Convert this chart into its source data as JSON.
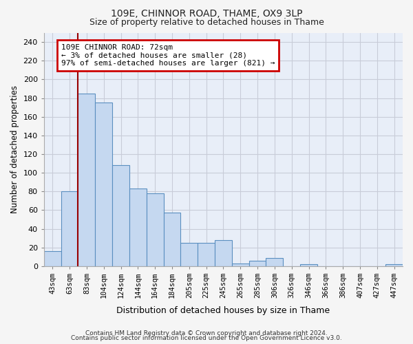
{
  "title1": "109E, CHINNOR ROAD, THAME, OX9 3LP",
  "title2": "Size of property relative to detached houses in Thame",
  "xlabel": "Distribution of detached houses by size in Thame",
  "ylabel": "Number of detached properties",
  "categories": [
    "43sqm",
    "63sqm",
    "83sqm",
    "104sqm",
    "124sqm",
    "144sqm",
    "164sqm",
    "184sqm",
    "205sqm",
    "225sqm",
    "245sqm",
    "265sqm",
    "285sqm",
    "306sqm",
    "326sqm",
    "346sqm",
    "366sqm",
    "386sqm",
    "407sqm",
    "427sqm",
    "447sqm"
  ],
  "values": [
    16,
    80,
    185,
    175,
    108,
    83,
    78,
    57,
    25,
    25,
    28,
    3,
    6,
    9,
    0,
    2,
    0,
    0,
    0,
    0,
    2
  ],
  "bar_color": "#c5d8f0",
  "bar_edge_color": "#5a8fc0",
  "red_line_x": 1.5,
  "annotation_text": "109E CHINNOR ROAD: 72sqm\n← 3% of detached houses are smaller (28)\n97% of semi-detached houses are larger (821) →",
  "annotation_box_color": "#ffffff",
  "annotation_box_edge": "#cc0000",
  "ylim": [
    0,
    250
  ],
  "yticks": [
    0,
    20,
    40,
    60,
    80,
    100,
    120,
    140,
    160,
    180,
    200,
    220,
    240
  ],
  "footer1": "Contains HM Land Registry data © Crown copyright and database right 2024.",
  "footer2": "Contains public sector information licensed under the Open Government Licence v3.0.",
  "bg_color": "#e8eef8",
  "grid_color": "#c8ccd8",
  "title_fontsize": 10,
  "subtitle_fontsize": 9
}
